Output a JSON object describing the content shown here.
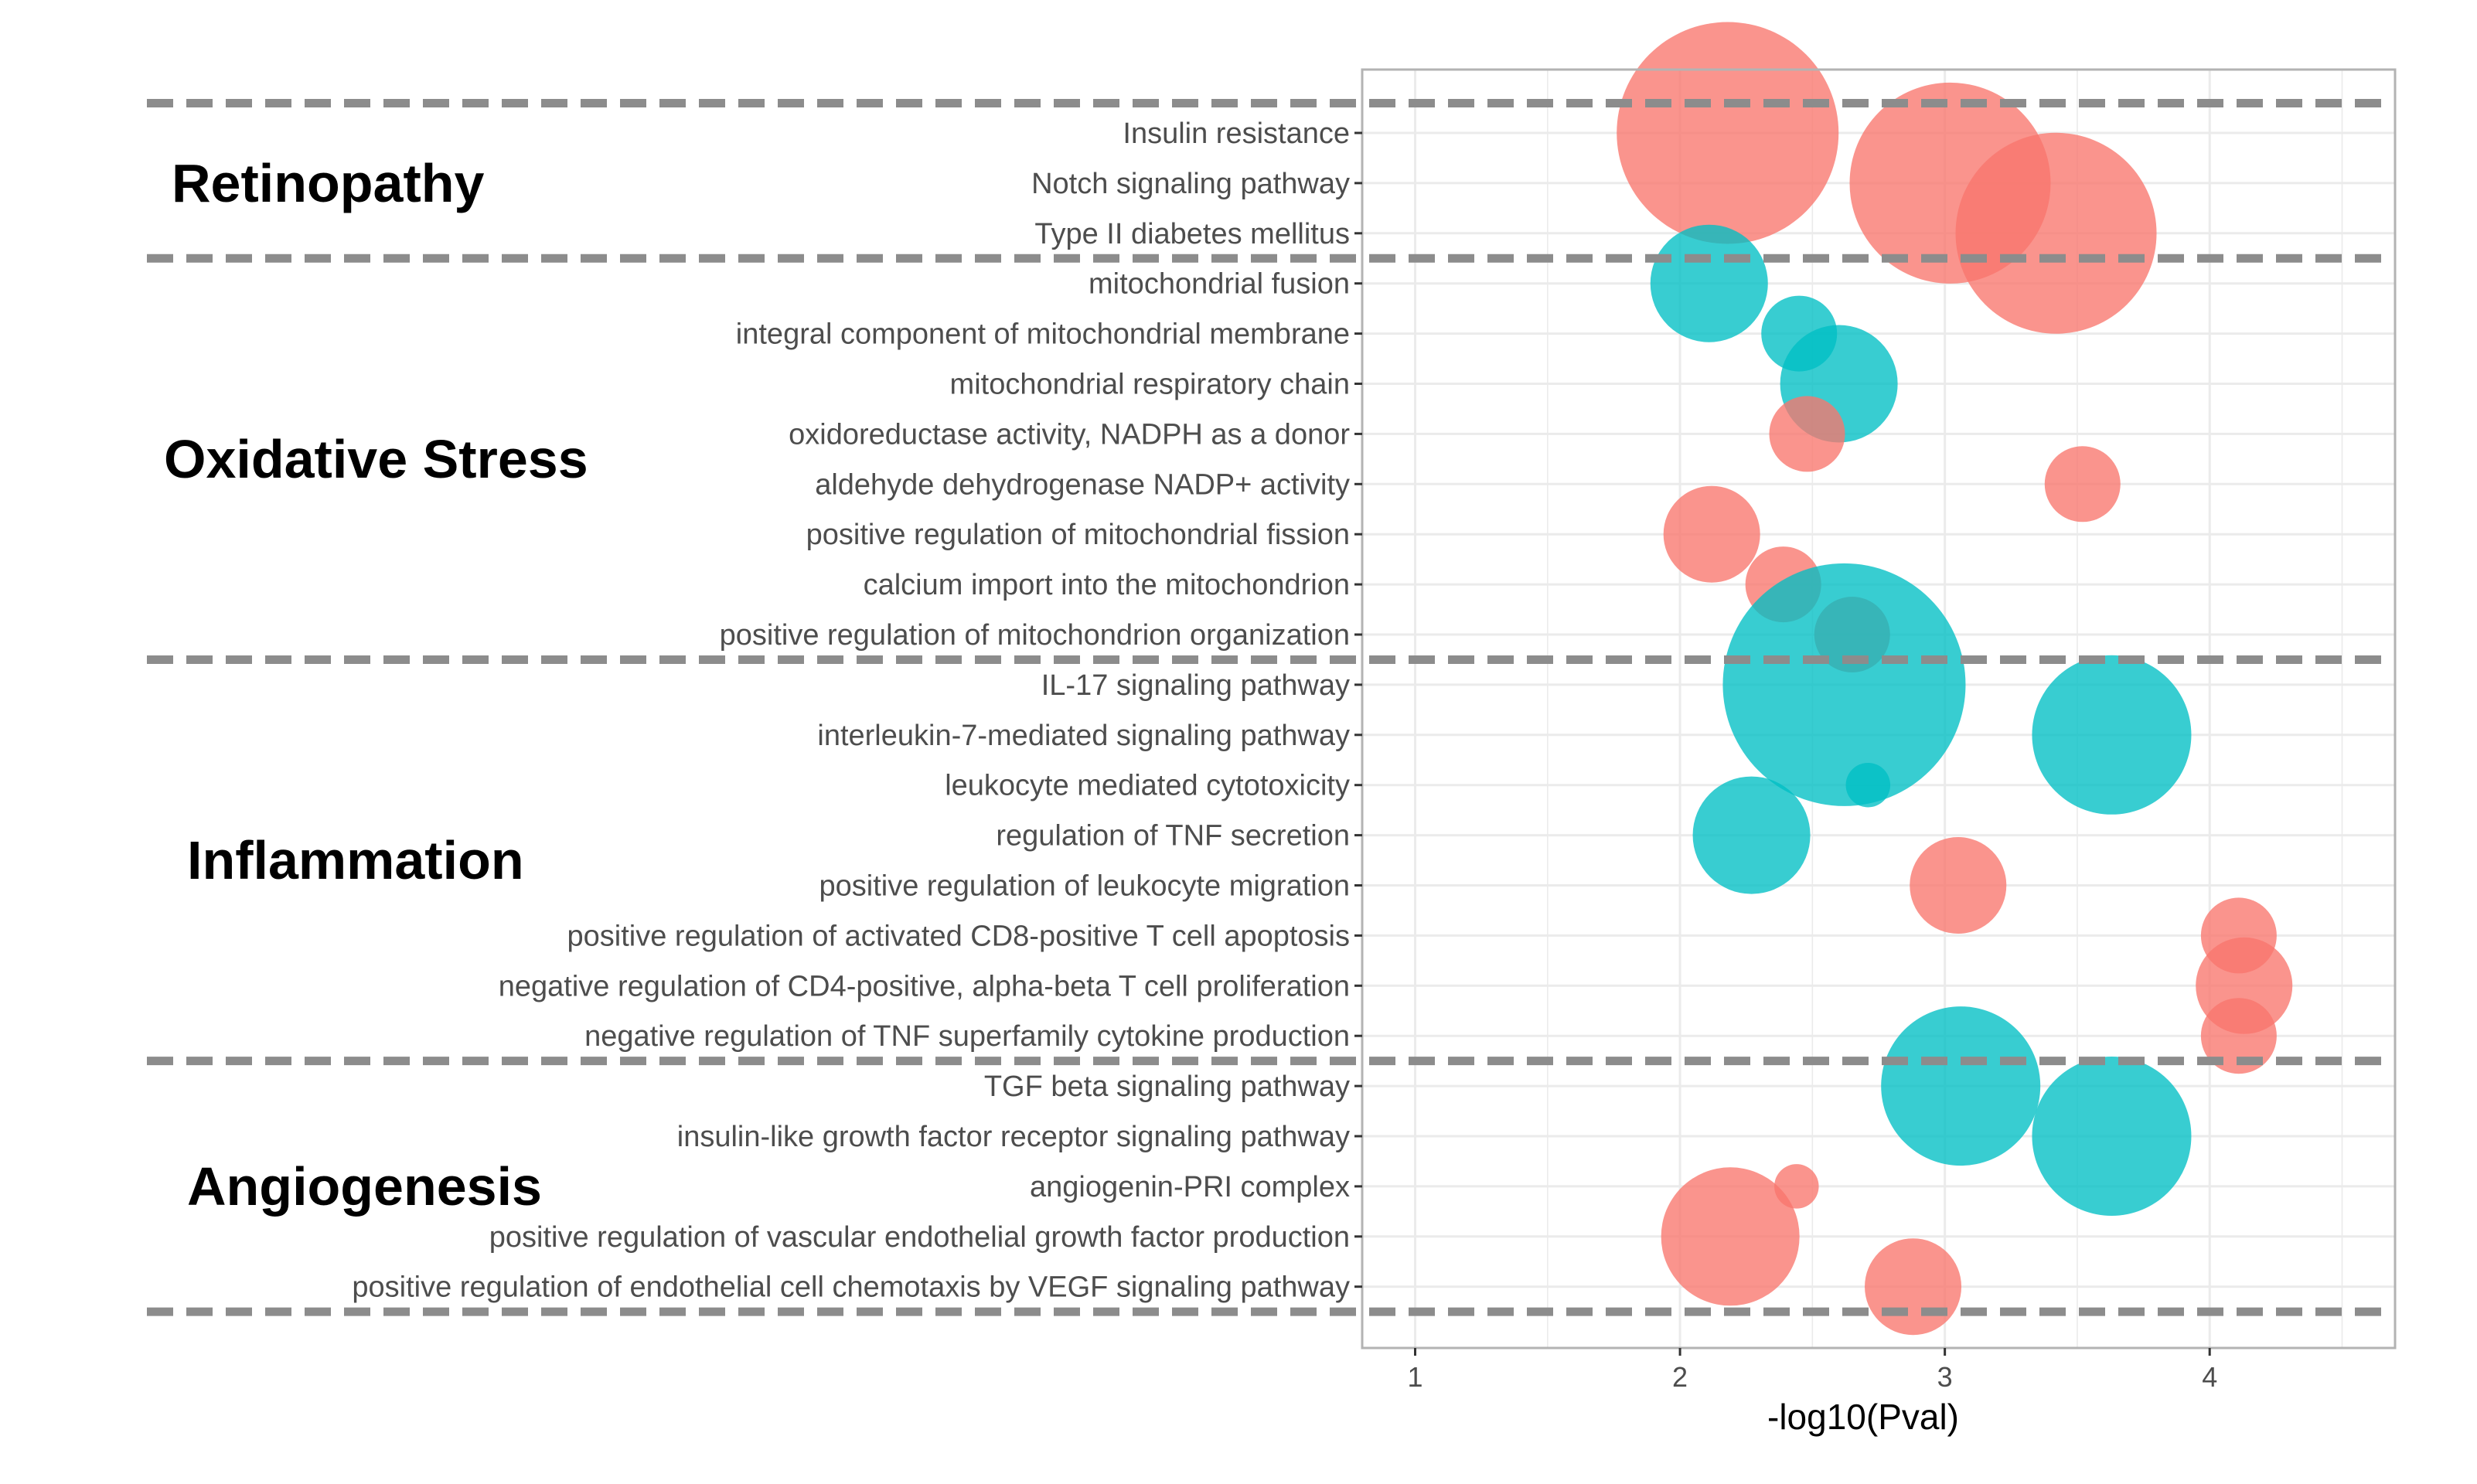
{
  "chart_data": {
    "type": "scatter",
    "subtype": "bubble",
    "xlabel": "-log10(Pval)",
    "ylabel": "",
    "xlim": [
      0.8,
      4.7
    ],
    "xticks": [
      1,
      2,
      3,
      4
    ],
    "grid": true,
    "legend": "none",
    "colors": {
      "red": "#F8766D",
      "teal": "#00BFC4",
      "separator": "#8c8c8c",
      "grid": "#ebebeb",
      "panel_border": "#b3b3b3"
    },
    "groups": [
      {
        "name": "Retinopathy",
        "terms": [
          "Insulin resistance",
          "Notch signaling pathway",
          "Type II diabetes mellitus"
        ]
      },
      {
        "name": "Oxidative Stress",
        "terms": [
          "mitochondrial fusion",
          "integral component of mitochondrial membrane",
          "mitochondrial respiratory chain",
          "oxidoreductase activity, NADPH as a donor",
          "aldehyde dehydrogenase NADP+ activity",
          "positive regulation of mitochondrial fission",
          "calcium import into the mitochondrion",
          "positive regulation of mitochondrion organization"
        ]
      },
      {
        "name": "Inflammation",
        "terms": [
          "IL-17 signaling pathway",
          "interleukin-7-mediated signaling pathway",
          "leukocyte mediated cytotoxicity",
          "regulation of TNF secretion",
          "positive regulation of leukocyte migration",
          "positive regulation of activated CD8-positive T cell apoptosis",
          "negative regulation of CD4-positive, alpha-beta T cell proliferation",
          "negative regulation of TNF superfamily cytokine production"
        ]
      },
      {
        "name": "Angiogenesis",
        "terms": [
          "TGF beta signaling pathway",
          "insulin-like growth factor receptor signaling pathway",
          "angiogenin-PRI complex",
          "positive regulation of vascular endothelial growth factor production",
          "positive regulation of endothelial cell chemotaxis by VEGF signaling pathway"
        ]
      }
    ],
    "points": [
      {
        "term": "Insulin resistance",
        "x": 2.18,
        "size": 9,
        "color": "red"
      },
      {
        "term": "Notch signaling pathway",
        "x": 3.02,
        "size": 8,
        "color": "red"
      },
      {
        "term": "Type II diabetes mellitus",
        "x": 3.42,
        "size": 8,
        "color": "red"
      },
      {
        "term": "mitochondrial fusion",
        "x": 2.11,
        "size": 4,
        "color": "teal"
      },
      {
        "term": "integral component of mitochondrial membrane",
        "x": 2.45,
        "size": 2,
        "color": "teal"
      },
      {
        "term": "mitochondrial respiratory chain",
        "x": 2.6,
        "size": 4,
        "color": "teal"
      },
      {
        "term": "oxidoreductase activity, NADPH as a donor",
        "x": 2.48,
        "size": 2,
        "color": "red"
      },
      {
        "term": "aldehyde dehydrogenase NADP+ activity",
        "x": 3.52,
        "size": 2,
        "color": "red"
      },
      {
        "term": "positive regulation of mitochondrial fission",
        "x": 2.12,
        "size": 3,
        "color": "red"
      },
      {
        "term": "calcium import into the mitochondrion",
        "x": 2.39,
        "size": 2,
        "color": "red"
      },
      {
        "term": "positive regulation of mitochondrion organization",
        "x": 2.65,
        "size": 2,
        "color": "red"
      },
      {
        "term": "IL-17 signaling pathway",
        "x": 2.62,
        "size": 10,
        "color": "teal"
      },
      {
        "term": "interleukin-7-mediated signaling pathway",
        "x": 3.63,
        "size": 6,
        "color": "teal"
      },
      {
        "term": "leukocyte mediated cytotoxicity",
        "x": 2.71,
        "size": 0.5,
        "color": "teal"
      },
      {
        "term": "regulation of TNF secretion",
        "x": 2.27,
        "size": 4,
        "color": "teal"
      },
      {
        "term": "positive regulation of leukocyte migration",
        "x": 3.05,
        "size": 3,
        "color": "red"
      },
      {
        "term": "positive regulation of activated CD8-positive T cell apoptosis",
        "x": 4.11,
        "size": 2,
        "color": "red"
      },
      {
        "term": "negative regulation of CD4-positive, alpha-beta T cell proliferation",
        "x": 4.13,
        "size": 3,
        "color": "red"
      },
      {
        "term": "negative regulation of TNF superfamily cytokine production",
        "x": 4.11,
        "size": 2,
        "color": "red"
      },
      {
        "term": "TGF beta signaling pathway",
        "x": 3.06,
        "size": 6,
        "color": "teal"
      },
      {
        "term": "insulin-like growth factor receptor signaling pathway",
        "x": 3.63,
        "size": 6,
        "color": "teal"
      },
      {
        "term": "angiogenin-PRI complex",
        "x": 2.44,
        "size": 0.5,
        "color": "red"
      },
      {
        "term": "positive regulation of vascular endothelial growth factor production",
        "x": 2.19,
        "size": 5,
        "color": "red"
      },
      {
        "term": "positive regulation of endothelial cell chemotaxis by VEGF signaling pathway",
        "x": 2.88,
        "size": 3,
        "color": "red"
      }
    ]
  }
}
